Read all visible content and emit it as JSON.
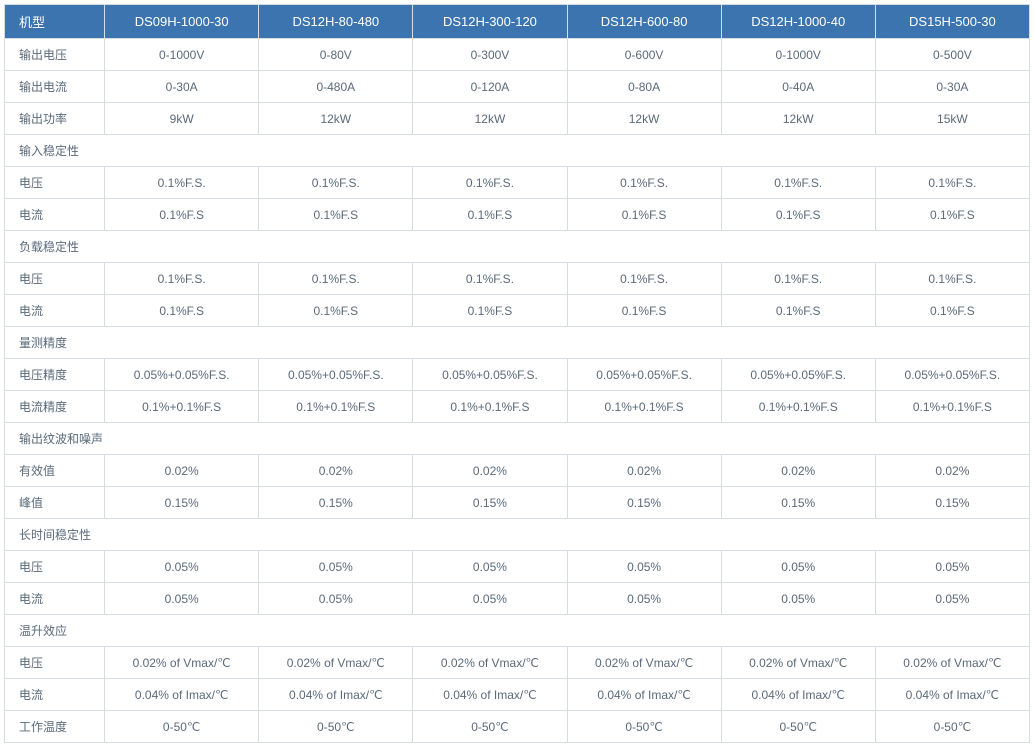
{
  "header": {
    "label_col": "机型",
    "models": [
      "DS09H-1000-30",
      "DS12H-80-480",
      "DS12H-300-120",
      "DS12H-600-80",
      "DS12H-1000-40",
      "DS15H-500-30"
    ]
  },
  "rows": [
    {
      "type": "data",
      "label": "输出电压",
      "cells": [
        "0-1000V",
        "0-80V",
        "0-300V",
        "0-600V",
        "0-1000V",
        "0-500V"
      ]
    },
    {
      "type": "data",
      "label": "输出电流",
      "cells": [
        "0-30A",
        "0-480A",
        "0-120A",
        "0-80A",
        "0-40A",
        "0-30A"
      ]
    },
    {
      "type": "data",
      "label": "输出功率",
      "cells": [
        "9kW",
        "12kW",
        "12kW",
        "12kW",
        "12kW",
        "15kW"
      ]
    },
    {
      "type": "section",
      "label": "输入稳定性"
    },
    {
      "type": "data",
      "label": "电压",
      "cells": [
        "0.1%F.S.",
        "0.1%F.S.",
        "0.1%F.S.",
        "0.1%F.S.",
        "0.1%F.S.",
        "0.1%F.S."
      ]
    },
    {
      "type": "data",
      "label": "电流",
      "cells": [
        "0.1%F.S",
        "0.1%F.S",
        "0.1%F.S",
        "0.1%F.S",
        "0.1%F.S",
        "0.1%F.S"
      ]
    },
    {
      "type": "section",
      "label": "负载稳定性"
    },
    {
      "type": "data",
      "label": "电压",
      "cells": [
        "0.1%F.S.",
        "0.1%F.S.",
        "0.1%F.S.",
        "0.1%F.S.",
        "0.1%F.S.",
        "0.1%F.S."
      ]
    },
    {
      "type": "data",
      "label": "电流",
      "cells": [
        "0.1%F.S",
        "0.1%F.S",
        "0.1%F.S",
        "0.1%F.S",
        "0.1%F.S",
        "0.1%F.S"
      ]
    },
    {
      "type": "section",
      "label": "量测精度"
    },
    {
      "type": "data",
      "label": "电压精度",
      "cells": [
        "0.05%+0.05%F.S.",
        "0.05%+0.05%F.S.",
        "0.05%+0.05%F.S.",
        "0.05%+0.05%F.S.",
        "0.05%+0.05%F.S.",
        "0.05%+0.05%F.S."
      ]
    },
    {
      "type": "data",
      "label": "电流精度",
      "cells": [
        "0.1%+0.1%F.S",
        "0.1%+0.1%F.S",
        "0.1%+0.1%F.S",
        "0.1%+0.1%F.S",
        "0.1%+0.1%F.S",
        "0.1%+0.1%F.S"
      ]
    },
    {
      "type": "section",
      "label": "输出纹波和噪声"
    },
    {
      "type": "data",
      "label": "有效值",
      "cells": [
        "0.02%",
        "0.02%",
        "0.02%",
        "0.02%",
        "0.02%",
        "0.02%"
      ]
    },
    {
      "type": "data",
      "label": "峰值",
      "cells": [
        "0.15%",
        "0.15%",
        "0.15%",
        "0.15%",
        "0.15%",
        "0.15%"
      ]
    },
    {
      "type": "section",
      "label": "长时间稳定性"
    },
    {
      "type": "data",
      "label": "电压",
      "cells": [
        "0.05%",
        "0.05%",
        "0.05%",
        "0.05%",
        "0.05%",
        "0.05%"
      ]
    },
    {
      "type": "data",
      "label": "电流",
      "cells": [
        "0.05%",
        "0.05%",
        "0.05%",
        "0.05%",
        "0.05%",
        "0.05%"
      ]
    },
    {
      "type": "section",
      "label": "温升效应"
    },
    {
      "type": "data",
      "label": "电压",
      "cells": [
        "0.02% of  Vmax/℃",
        "0.02% of  Vmax/℃",
        "0.02% of  Vmax/℃",
        "0.02% of  Vmax/℃",
        "0.02% of  Vmax/℃",
        "0.02% of  Vmax/℃"
      ]
    },
    {
      "type": "data",
      "label": "电流",
      "cells": [
        "0.04% of  Imax/℃",
        "0.04% of  Imax/℃",
        "0.04% of  Imax/℃",
        "0.04% of  Imax/℃",
        "0.04% of  Imax/℃",
        "0.04% of  Imax/℃"
      ]
    },
    {
      "type": "data",
      "label": "工作温度",
      "cells": [
        "0-50℃",
        "0-50℃",
        "0-50℃",
        "0-50℃",
        "0-50℃",
        "0-50℃"
      ]
    }
  ]
}
